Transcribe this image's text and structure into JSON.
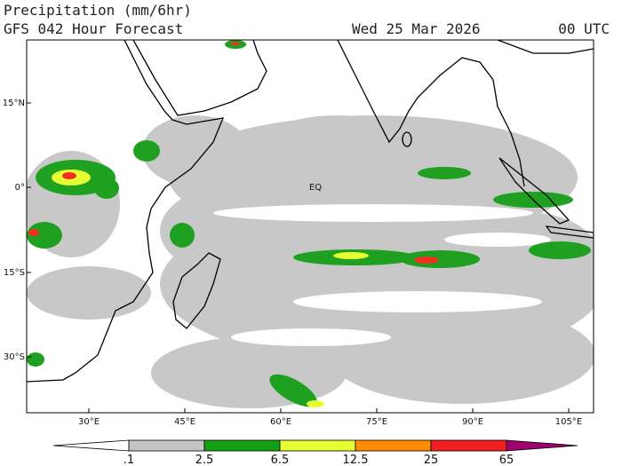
{
  "header": {
    "title": "Precipitation (mm/6hr)",
    "subtitle": "GFS 042 Hour Forecast",
    "date": "Wed 25 Mar 2026",
    "time": "00 UTC"
  },
  "map": {
    "lat_labels": [
      "15°N",
      "0°",
      "15°S",
      "30°S"
    ],
    "lon_labels": [
      "30°E",
      "45°E",
      "60°E",
      "75°E",
      "90°E",
      "105°E"
    ],
    "equator_label": "EQ"
  },
  "colorbar": {
    "labels": [
      ".1",
      "2.5",
      "6.5",
      "12.5",
      "25",
      "65"
    ],
    "colors": [
      "#ffffff",
      "#c4c4c4",
      "#14a014",
      "#e6ff32",
      "#ff8c00",
      "#f02020",
      "#a0006e"
    ]
  }
}
